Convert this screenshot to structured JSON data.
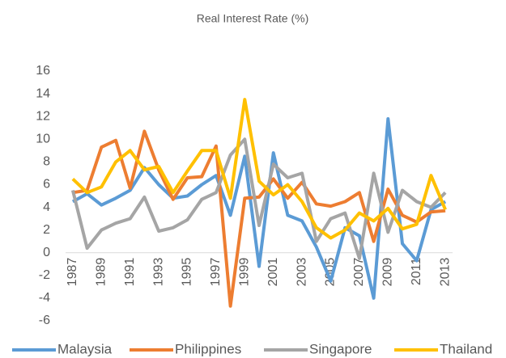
{
  "chart_data": {
    "type": "line",
    "title": "Real Interest Rate (%)",
    "categories": [
      "1987",
      null,
      "1989",
      null,
      "1991",
      null,
      "1993",
      null,
      "1995",
      null,
      "1997",
      null,
      "1999",
      null,
      "2001",
      null,
      "2003",
      null,
      "2005",
      null,
      "2007",
      null,
      "2009",
      null,
      "2011",
      null,
      "2013"
    ],
    "series": [
      {
        "name": "Malaysia",
        "color": "#5b9bd5",
        "values": [
          4.5,
          5.2,
          4.2,
          4.8,
          5.5,
          7.5,
          6.0,
          4.8,
          5.0,
          6.0,
          6.8,
          3.3,
          8.5,
          -1.2,
          8.8,
          3.3,
          2.8,
          0.5,
          -2.5,
          2.2,
          1.5,
          -4.0,
          11.8,
          0.8,
          -0.7,
          3.8,
          4.5
        ]
      },
      {
        "name": "Philippines",
        "color": "#ed7d31",
        "values": [
          5.3,
          5.5,
          9.3,
          9.9,
          5.7,
          10.7,
          7.3,
          4.7,
          6.6,
          6.7,
          9.4,
          -4.7,
          4.8,
          4.9,
          6.5,
          4.8,
          6.2,
          4.3,
          4.1,
          4.5,
          5.3,
          1.0,
          5.6,
          3.3,
          2.7,
          3.6,
          3.7
        ]
      },
      {
        "name": "Singapore",
        "color": "#a5a5a5",
        "values": [
          5.5,
          0.4,
          2.0,
          2.6,
          3.0,
          4.9,
          1.9,
          2.2,
          2.9,
          4.7,
          5.3,
          8.6,
          10.0,
          2.4,
          7.8,
          6.6,
          7.0,
          1.0,
          3.0,
          3.5,
          -0.5,
          7.0,
          1.8,
          5.5,
          4.5,
          4.0,
          5.3
        ]
      },
      {
        "name": "Thailand",
        "color": "#ffc000",
        "values": [
          6.5,
          5.3,
          5.8,
          8.0,
          9.0,
          7.3,
          7.6,
          5.3,
          7.2,
          9.0,
          9.0,
          4.8,
          13.5,
          6.3,
          5.1,
          6.0,
          4.5,
          2.2,
          1.3,
          2.0,
          3.5,
          2.8,
          3.9,
          2.1,
          2.5,
          6.8,
          3.8
        ]
      }
    ],
    "ylim": [
      -6,
      16
    ],
    "yticks": [
      -6,
      -4,
      -2,
      0,
      2,
      4,
      6,
      8,
      10,
      12,
      14,
      16
    ],
    "grid": false,
    "legend": "bottom"
  }
}
